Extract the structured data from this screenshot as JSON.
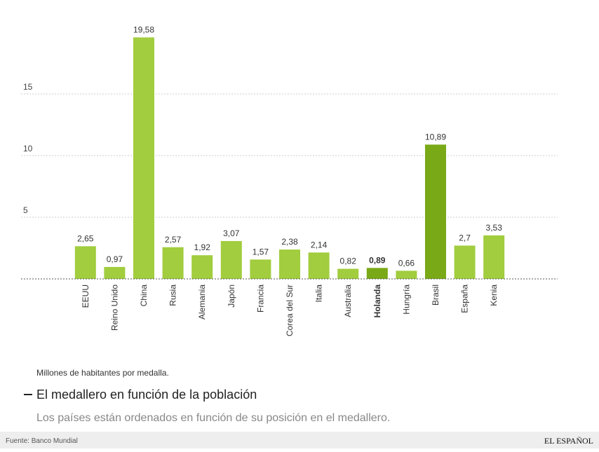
{
  "chart_data": {
    "type": "bar",
    "categories": [
      "EEUU",
      "Reino Unido",
      "China",
      "Rusia",
      "Alemania",
      "Japón",
      "Francia",
      "Corea del Sur",
      "Italia",
      "Australia",
      "Holanda",
      "Hungría",
      "Brasil",
      "España",
      "Kenia"
    ],
    "values": [
      2.65,
      0.97,
      19.58,
      2.57,
      1.92,
      3.07,
      1.57,
      2.38,
      2.14,
      0.82,
      0.89,
      0.66,
      10.89,
      2.7,
      3.53
    ],
    "value_labels": [
      "2,65",
      "0,97",
      "19,58",
      "2,57",
      "1,92",
      "3,07",
      "1,57",
      "2,38",
      "2,14",
      "0,82",
      "0,89",
      "0,66",
      "10,89",
      "2,7",
      "3,53"
    ],
    "colors": [
      "#a1cd3e",
      "#a1cd3e",
      "#a1cd3e",
      "#a1cd3e",
      "#a1cd3e",
      "#a1cd3e",
      "#a1cd3e",
      "#a1cd3e",
      "#a1cd3e",
      "#a1cd3e",
      "#79a917",
      "#a1cd3e",
      "#79a917",
      "#a1cd3e",
      "#a1cd3e"
    ],
    "emphasis": [
      false,
      false,
      false,
      false,
      false,
      false,
      false,
      false,
      false,
      false,
      true,
      false,
      false,
      false,
      false
    ],
    "ylim": [
      0,
      20
    ],
    "yticks": [
      5,
      10,
      15
    ],
    "grid": true,
    "note": "Millones de habitantes por medalla.",
    "title": "El medallero en función de la población",
    "subtitle": "Los países están ordenados en función de su posición en el medallero.",
    "source": "Fuente: Banco Mundial",
    "brand": "EL ESPAÑOL"
  }
}
